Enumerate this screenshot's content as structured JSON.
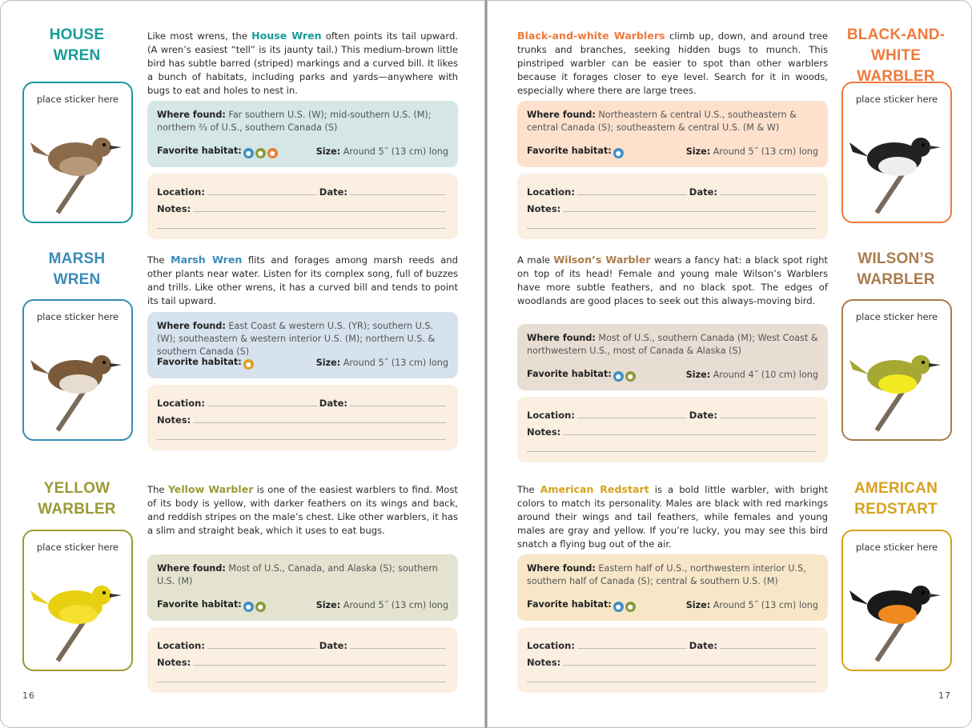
{
  "pages": [
    {
      "number": "16",
      "sections": [
        {
          "title_lines": [
            "HOUSE",
            "WREN"
          ],
          "color": "#1a9c9a",
          "info_bg": "#d4e6e5",
          "sticker": "place sticker here",
          "intro_before": "Like most wrens, the ",
          "name": "House Wren",
          "intro_after": " often points its tail upward. (A wren’s easiest “tell” is its jaunty tail.) This medium-brown little bird has subtle barred (striped) markings and a curved bill. It likes a bunch of habitats, including parks and yards—anywhere with bugs to eat and holes to nest in.",
          "where_label": "Where found:",
          "where": " Far southern U.S. (W); mid-southern U.S. (M); northern ⅔ of U.S., southern Canada (S)",
          "habitat_label": "Favorite habitat:",
          "habitat_icons": [
            {
              "name": "forest-icon",
              "color": "#3d8fc6"
            },
            {
              "name": "shrubland-icon",
              "color": "#8a9a3a"
            },
            {
              "name": "house-icon",
              "color": "#ee7a35"
            }
          ],
          "size_label": "Size:",
          "size": " Around 5˝ (13 cm) long",
          "bird": {
            "body": "#8a6a4a",
            "belly": "#b89a7a"
          }
        },
        {
          "title_lines": [
            "MARSH",
            "WREN"
          ],
          "color": "#3a8bb8",
          "info_bg": "#d6e2ed",
          "sticker": "place sticker here",
          "intro_before": "The ",
          "name": "Marsh Wren",
          "intro_after": " flits and forages among marsh reeds and other plants near water. Listen for its complex song, full of buzzes and trills. Like other wrens, it has a curved bill and tends to point its tail upward.",
          "where_label": "Where found:",
          "where": " East Coast & western U.S. (YR); southern U.S. (W); southeastern & western interior U.S. (M); northern U.S. & southern Canada (S)",
          "habitat_label": "Favorite habitat:",
          "habitat_icons": [
            {
              "name": "wetland-icon",
              "color": "#e0a020"
            }
          ],
          "size_label": "Size:",
          "size": " Around 5˝ (13 cm) long",
          "bird": {
            "body": "#7a5a3a",
            "belly": "#e6ddd0"
          }
        },
        {
          "title_lines": [
            "YELLOW",
            "WARBLER"
          ],
          "color": "#9b9a36",
          "info_bg": "#e3e3d0",
          "sticker": "place sticker here",
          "intro_before": "The ",
          "name": "Yellow Warbler",
          "intro_after": " is one of the easiest warblers to find. Most of its body is yellow, with darker feathers on its wings and back, and reddish stripes on the male’s chest. Like other warblers, it has a slim and straight beak, which it uses to eat bugs.",
          "where_label": "Where found:",
          "where": " Most of U.S., Canada, and Alaska (S); southern U.S. (M)",
          "habitat_label": "Favorite habitat:",
          "habitat_icons": [
            {
              "name": "forest-icon",
              "color": "#3d8fc6"
            },
            {
              "name": "shrubland-icon",
              "color": "#8a9a3a"
            }
          ],
          "size_label": "Size:",
          "size": " Around 5˝ (13 cm) long",
          "bird": {
            "body": "#e8cf10",
            "belly": "#f5e030"
          }
        }
      ]
    },
    {
      "number": "17",
      "sections": [
        {
          "title_lines": [
            "BLACK-AND-WHITE",
            "WARBLER"
          ],
          "color": "#ef7a3c",
          "info_bg": "#fde1cd",
          "sticker": "place sticker here",
          "intro_before": "",
          "name": "Black-and-white Warblers",
          "intro_after": " climb up, down, and around tree trunks and branches, seeking hidden bugs to munch. This pinstriped warbler can be easier to spot than other warblers because it forages closer to eye level. Search for it in woods, especially where there are large trees.",
          "where_label": "Where found:",
          "where": " Northeastern & central U.S., southeastern & central Canada (S); southeastern & central U.S. (M & W)",
          "habitat_label": "Favorite habitat:",
          "habitat_icons": [
            {
              "name": "forest-icon",
              "color": "#3d8fc6"
            }
          ],
          "size_label": "Size:",
          "size": " Around 5˝ (13 cm) long",
          "bird": {
            "body": "#222",
            "belly": "#eee"
          }
        },
        {
          "title_lines": [
            "WILSON’S",
            "WARBLER"
          ],
          "color": "#a87c4c",
          "info_bg": "#e8ddd3",
          "sticker": "place sticker here",
          "intro_before": "A male ",
          "name": "Wilson’s Warbler",
          "intro_after": " wears a fancy hat: a black spot right on top of its head! Female and young male Wilson’s Warblers have more subtle feathers, and no black spot. The edges of woodlands are good places to seek out this always-moving bird.",
          "where_label": "Where found:",
          "where": " Most of U.S., southern Canada (M); West Coast & northwestern U.S., most of Canada & Alaska (S)",
          "habitat_label": "Favorite habitat:",
          "habitat_icons": [
            {
              "name": "forest-icon",
              "color": "#3d8fc6"
            },
            {
              "name": "shrubland-icon",
              "color": "#8a9a3a"
            }
          ],
          "size_label": "Size:",
          "size": " Around 4˝ (10 cm) long",
          "bird": {
            "body": "#a5a832",
            "belly": "#f2ea20"
          }
        },
        {
          "title_lines": [
            "AMERICAN",
            "REDSTART"
          ],
          "color": "#d6a21e",
          "info_bg": "#f7e7c8",
          "sticker": "place sticker here",
          "intro_before": "The ",
          "name": "American Redstart",
          "intro_after": " is a bold little warbler, with bright colors to match its personality. Males are black with red markings around their wings and tail feathers, while females and young males are gray and yellow. If you’re lucky, you may see this bird snatch a flying bug out of the air.",
          "where_label": "Where found:",
          "where": " Eastern half of U.S., northwestern interior U.S, southern half of Canada (S); central & southern U.S. (M)",
          "habitat_label": "Favorite habitat:",
          "habitat_icons": [
            {
              "name": "forest-icon",
              "color": "#3d8fc6"
            },
            {
              "name": "shrubland-icon",
              "color": "#8a9a3a"
            }
          ],
          "size_label": "Size:",
          "size": " Around 5˝ (13 cm) long",
          "bird": {
            "body": "#1a1a1a",
            "belly": "#f08a20"
          }
        }
      ]
    }
  ],
  "log_labels": {
    "location": "Location:",
    "date": "Date:",
    "notes": "Notes:"
  }
}
